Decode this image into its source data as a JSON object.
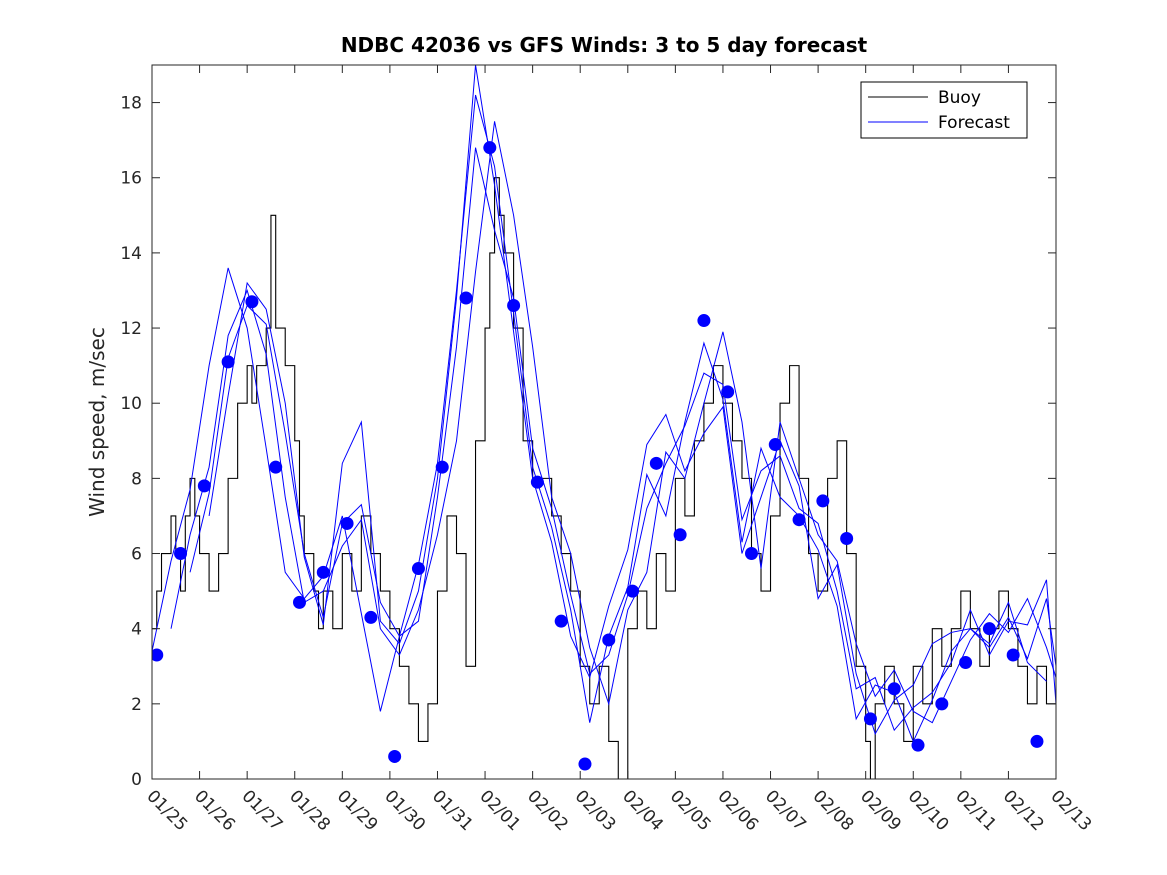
{
  "chart_data": {
    "type": "line",
    "title": "NDBC 42036 vs GFS Winds: 3 to 5 day forecast",
    "xlabel": "",
    "ylabel": "Wind speed, m/sec",
    "ylim": [
      0,
      19
    ],
    "xlim": [
      0,
      19
    ],
    "yticks": [
      0,
      2,
      4,
      6,
      8,
      10,
      12,
      14,
      16,
      18
    ],
    "xtick_labels": [
      "01/25",
      "01/26",
      "01/27",
      "01/28",
      "01/29",
      "01/30",
      "01/31",
      "02/01",
      "02/02",
      "02/03",
      "02/04",
      "02/05",
      "02/06",
      "02/07",
      "02/08",
      "02/09",
      "02/10",
      "02/11",
      "02/12",
      "02/13"
    ],
    "legend": {
      "position": "top-right",
      "entries": [
        "Buoy",
        "Forecast"
      ]
    },
    "colors": {
      "buoy": "#000000",
      "forecast": "#0000ff",
      "marker": "#0000ff"
    },
    "series": [
      {
        "name": "Buoy",
        "x": [
          0,
          0.1,
          0.2,
          0.3,
          0.4,
          0.5,
          0.6,
          0.7,
          0.8,
          0.9,
          1.0,
          1.2,
          1.4,
          1.6,
          1.8,
          2.0,
          2.1,
          2.2,
          2.4,
          2.5,
          2.6,
          2.8,
          3.0,
          3.1,
          3.2,
          3.4,
          3.5,
          3.6,
          3.8,
          4.0,
          4.2,
          4.4,
          4.6,
          4.8,
          5.0,
          5.2,
          5.4,
          5.6,
          5.8,
          6.0,
          6.2,
          6.4,
          6.6,
          6.8,
          7.0,
          7.1,
          7.2,
          7.3,
          7.4,
          7.6,
          7.8,
          8.0,
          8.2,
          8.4,
          8.6,
          8.8,
          9.0,
          9.2,
          9.4,
          9.6,
          9.8,
          10.0,
          10.2,
          10.4,
          10.6,
          10.8,
          11.0,
          11.2,
          11.4,
          11.6,
          11.8,
          12.0,
          12.2,
          12.4,
          12.6,
          12.8,
          13.0,
          13.2,
          13.4,
          13.6,
          13.8,
          14.0,
          14.2,
          14.4,
          14.6,
          14.8,
          15.0,
          15.1,
          15.2,
          15.4,
          15.6,
          15.8,
          16.0,
          16.2,
          16.4,
          16.6,
          16.8,
          17.0,
          17.2,
          17.4,
          17.6,
          17.8,
          18.0,
          18.2,
          18.4,
          18.6,
          18.8,
          19.0
        ],
        "values": [
          4,
          5,
          6,
          6,
          7,
          6,
          5,
          7,
          8,
          7,
          6,
          5,
          6,
          8,
          10,
          11,
          10,
          11,
          12,
          15,
          12,
          11,
          9,
          7,
          6,
          5,
          4,
          5,
          4,
          6,
          5,
          7,
          6,
          5,
          4,
          3,
          2,
          1,
          2,
          5,
          7,
          6,
          3,
          9,
          12,
          14,
          16,
          15,
          14,
          12,
          9,
          8,
          8,
          7,
          6,
          5,
          3,
          2,
          3,
          1,
          0,
          4,
          5,
          4,
          6,
          5,
          8,
          7,
          9,
          10,
          11,
          10,
          9,
          8,
          6,
          5,
          7,
          10,
          11,
          8,
          6,
          5,
          8,
          9,
          6,
          3,
          1,
          0,
          2,
          3,
          2,
          1,
          3,
          2,
          4,
          3,
          4,
          5,
          4,
          3,
          4,
          5,
          4,
          3,
          2,
          3,
          2,
          3
        ]
      },
      {
        "name": "Forecast",
        "x": [
          0,
          0.4,
          0.8,
          1.2,
          1.6,
          2.0,
          2.4,
          2.8,
          3.2,
          3.6,
          4.0,
          4.4,
          4.8,
          5.2,
          5.6,
          6.0,
          6.4,
          6.8,
          7.2,
          7.6,
          8.0,
          8.4,
          8.8,
          9.2,
          9.6,
          10.0,
          10.4,
          10.8,
          11.2,
          11.6,
          12.0,
          12.4,
          12.8,
          13.2,
          13.6,
          14.0,
          14.4,
          14.8,
          15.2,
          15.6,
          16.0,
          16.4,
          16.8,
          17.2,
          17.6,
          18.0,
          18.4,
          18.8,
          19.0
        ],
        "values": [
          3.4,
          5.8,
          7.7,
          11.0,
          13.6,
          12.0,
          8.8,
          5.5,
          4.8,
          5.4,
          7.0,
          4.4,
          1.8,
          3.8,
          5.7,
          8.4,
          13.0,
          18.2,
          16.3,
          12.4,
          8.3,
          6.7,
          4.5,
          1.5,
          3.8,
          5.1,
          8.1,
          7.0,
          9.5,
          11.6,
          10.1,
          6.3,
          8.8,
          7.5,
          7.0,
          6.1,
          4.6,
          1.6,
          2.5,
          2.3,
          1.0,
          2.1,
          3.4,
          4.0,
          3.5,
          4.3,
          3.2,
          4.8,
          3.0
        ]
      },
      {
        "name": "Forecast",
        "x": [
          0.4,
          0.8,
          1.2,
          1.6,
          2.0,
          2.4,
          2.8,
          3.2,
          3.6,
          4.0,
          4.4,
          4.8,
          5.2,
          5.6,
          6.0,
          6.4,
          6.8,
          7.2,
          7.6,
          8.0,
          8.4,
          8.8,
          9.2,
          9.6,
          10.0,
          10.4,
          10.8,
          11.2,
          11.6,
          12.0,
          12.4,
          12.8,
          13.2,
          13.6,
          14.0,
          14.4,
          14.8,
          15.2,
          15.6,
          16.0,
          16.4,
          16.8,
          17.2,
          17.6,
          18.0,
          18.4,
          18.8,
          19.0
        ],
        "values": [
          4.0,
          6.5,
          8.3,
          11.8,
          13.0,
          11.3,
          7.5,
          4.7,
          5.0,
          6.2,
          6.9,
          4.0,
          3.3,
          4.5,
          6.5,
          9.0,
          13.5,
          17.5,
          15.0,
          11.5,
          7.5,
          6.0,
          3.5,
          2.0,
          4.5,
          5.5,
          8.7,
          8.0,
          10.0,
          11.9,
          9.5,
          5.6,
          9.5,
          8.0,
          6.5,
          5.8,
          3.6,
          2.2,
          2.9,
          1.8,
          1.5,
          2.6,
          3.7,
          4.4,
          3.9,
          4.8,
          3.5,
          2.7
        ]
      },
      {
        "name": "Forecast",
        "x": [
          0.8,
          1.2,
          1.6,
          2.0,
          2.4,
          2.8,
          3.2,
          3.6,
          4.0,
          4.4,
          4.8,
          5.2,
          5.6,
          6.0,
          6.4,
          6.8,
          7.2,
          7.6,
          8.0,
          8.4,
          8.8,
          9.2,
          9.6,
          10.0,
          10.4,
          10.8,
          11.2,
          11.6,
          12.0,
          12.4,
          12.8,
          13.2,
          13.6,
          14.0,
          14.4,
          14.8,
          15.2,
          15.6,
          16.0,
          16.4,
          16.8,
          17.2,
          17.6,
          18.0,
          18.4,
          18.8,
          19.0
        ],
        "values": [
          5.5,
          7.6,
          11.2,
          12.6,
          12.1,
          9.2,
          6.0,
          4.3,
          6.8,
          7.3,
          4.7,
          3.8,
          4.2,
          7.5,
          11.5,
          16.8,
          14.6,
          12.8,
          8.8,
          7.2,
          4.9,
          2.8,
          3.3,
          4.9,
          7.2,
          8.4,
          9.4,
          10.8,
          10.5,
          6.9,
          8.2,
          8.6,
          7.2,
          6.8,
          5.0,
          2.4,
          2.7,
          1.3,
          1.9,
          2.3,
          3.1,
          4.5,
          3.3,
          4.2,
          4.1,
          5.3,
          2.0
        ]
      },
      {
        "name": "Forecast",
        "x": [
          1.2,
          1.6,
          2.0,
          2.4,
          2.8,
          3.2,
          3.6,
          4.0,
          4.4,
          4.8,
          5.2,
          5.6,
          6.0,
          6.4,
          6.8,
          7.2,
          7.6,
          8.0,
          8.4,
          8.8,
          9.2,
          9.6,
          10.0,
          10.4,
          10.8,
          11.2,
          11.6,
          12.0,
          12.4,
          12.8,
          13.2,
          13.6,
          14.0,
          14.4,
          14.8,
          15.2,
          15.6,
          16.0,
          16.4,
          16.8,
          17.2,
          17.6,
          18.0,
          18.4,
          18.8
        ],
        "values": [
          7.0,
          10.2,
          13.2,
          12.5,
          10.0,
          5.9,
          4.1,
          8.4,
          9.5,
          4.2,
          3.6,
          5.0,
          8.0,
          12.8,
          19.0,
          15.8,
          11.9,
          8.0,
          6.3,
          3.8,
          2.7,
          4.6,
          6.1,
          8.9,
          9.7,
          8.2,
          9.2,
          9.9,
          6.0,
          7.5,
          9.0,
          7.8,
          4.8,
          5.7,
          2.8,
          1.2,
          2.1,
          2.5,
          3.6,
          3.9,
          4.0,
          3.6,
          4.7,
          3.1,
          2.6
        ]
      }
    ],
    "markers": {
      "name": "Forecast points",
      "x": [
        0.1,
        0.6,
        1.1,
        1.6,
        2.1,
        2.6,
        3.1,
        3.6,
        4.1,
        4.6,
        5.1,
        5.6,
        6.1,
        6.6,
        7.1,
        7.6,
        8.1,
        8.6,
        9.1,
        9.6,
        10.1,
        10.6,
        11.1,
        11.6,
        12.1,
        12.6,
        13.1,
        13.6,
        14.1,
        14.6,
        15.1,
        15.6,
        16.1,
        16.6,
        17.1,
        17.6,
        18.1,
        18.6
      ],
      "values": [
        3.3,
        6.0,
        7.8,
        11.1,
        12.7,
        8.3,
        4.7,
        5.5,
        6.8,
        4.3,
        0.6,
        5.6,
        8.3,
        12.8,
        16.8,
        12.6,
        7.9,
        4.2,
        0.4,
        3.7,
        5.0,
        8.4,
        6.5,
        12.2,
        10.3,
        6.0,
        8.9,
        6.9,
        7.4,
        6.4,
        1.6,
        2.4,
        0.9,
        2.0,
        3.1,
        4.0,
        3.3,
        1.0
      ]
    }
  }
}
